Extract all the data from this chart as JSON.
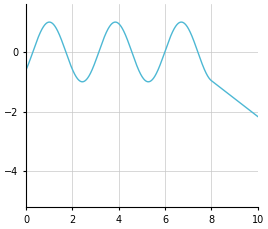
{
  "t_start": 0,
  "t_data_end": 8,
  "extrapolate_end": 10,
  "period": 2.85,
  "amplitude": 1.0,
  "phase_shift": 1.0,
  "xlim": [
    0,
    10
  ],
  "ylim": [
    -5.2,
    1.6
  ],
  "xticks": [
    0,
    2,
    4,
    6,
    8,
    10
  ],
  "yticks": [
    0,
    -2,
    -4
  ],
  "line_color": "#4db8d4",
  "bg_color": "#ffffff",
  "grid_color": "#c8c8c8",
  "figsize": [
    2.68,
    2.29
  ],
  "dpi": 100
}
